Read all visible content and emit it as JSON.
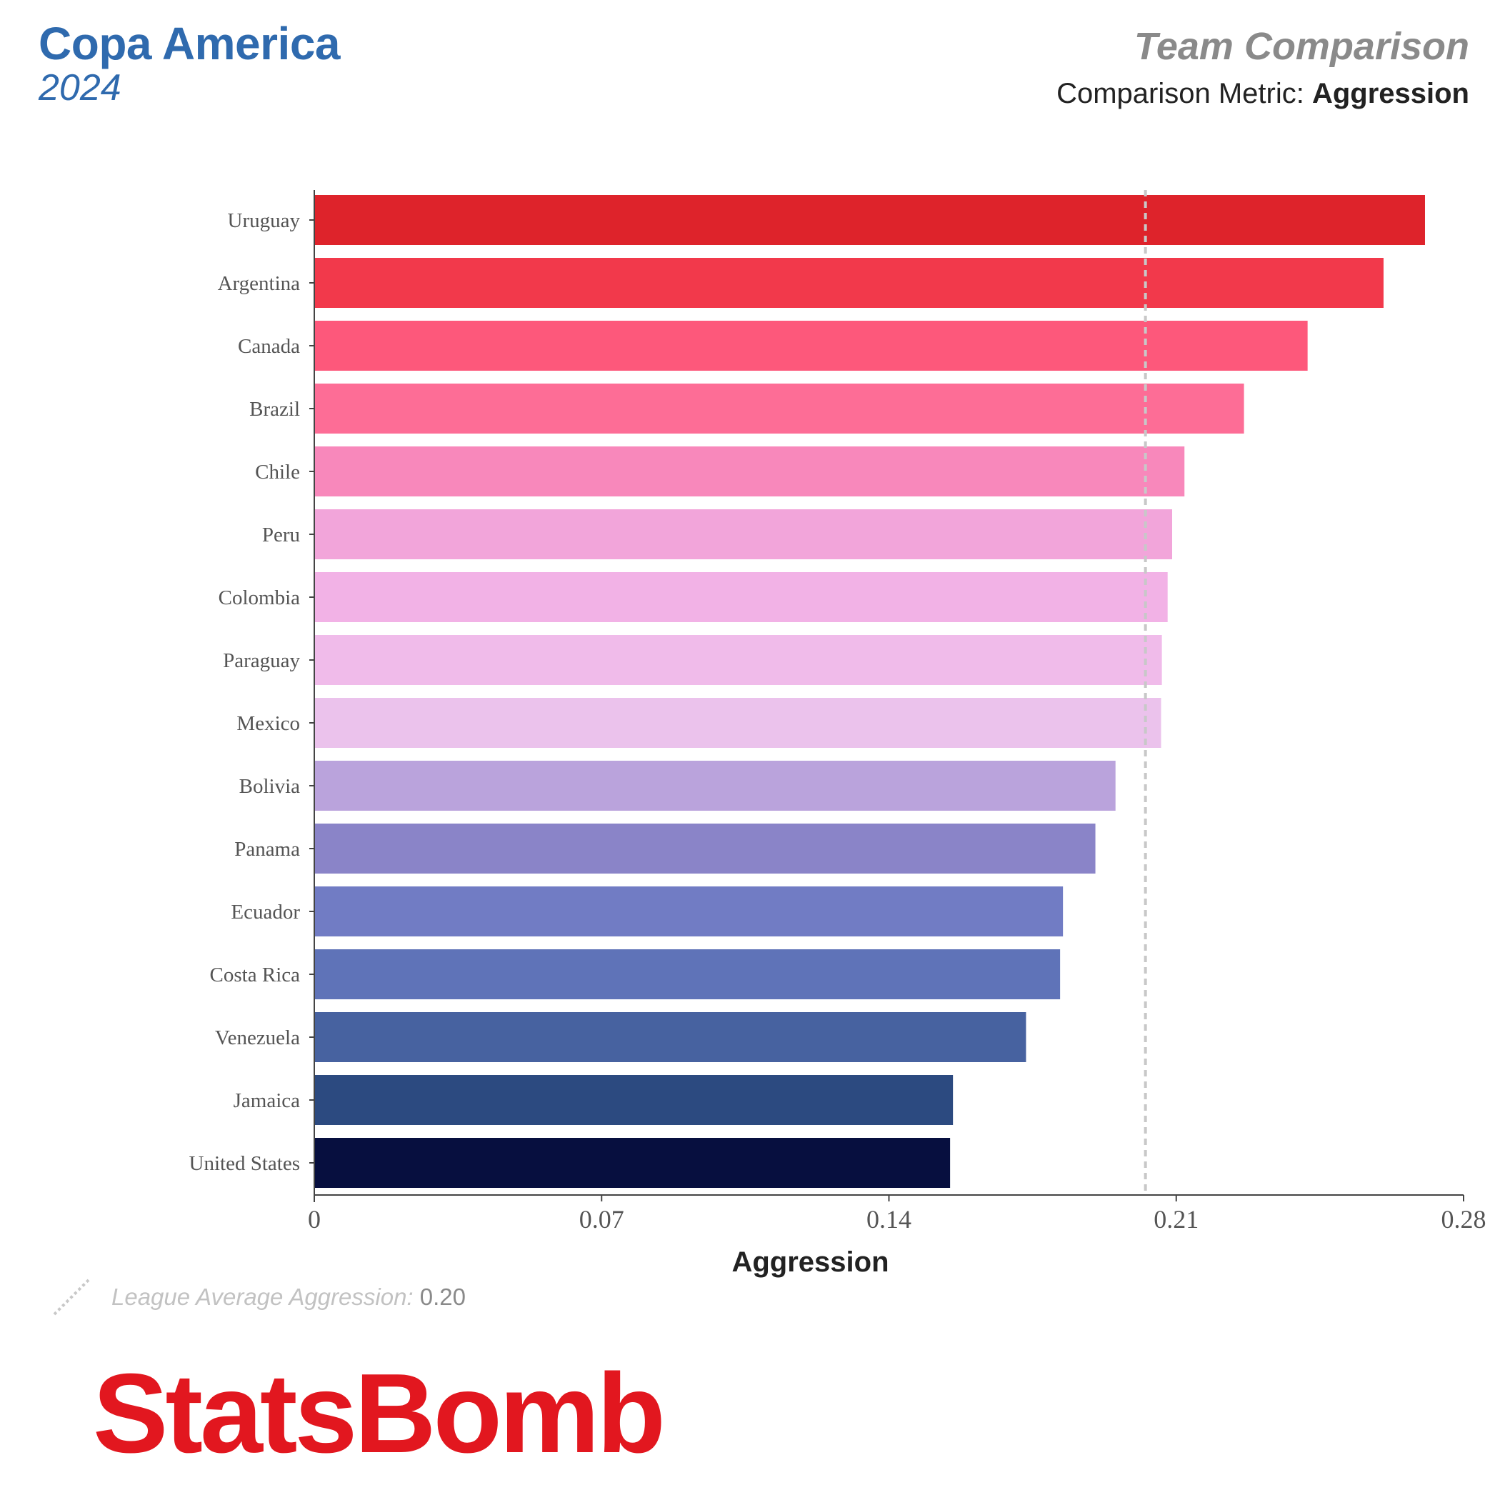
{
  "header": {
    "competition": "Copa America",
    "season": "2024",
    "chart_kind": "Team Comparison",
    "metric_prefix": "Comparison Metric:",
    "metric_name": "Aggression"
  },
  "legend": {
    "label": "League Average Aggression:",
    "value": "0.20"
  },
  "brand": {
    "logo_text": "StatsBomb"
  },
  "colors": {
    "title_blue": "#2f6aae",
    "brand_red": "#e2171f",
    "average_line": "#c8c8c8"
  },
  "chart_data": {
    "type": "bar",
    "orientation": "horizontal",
    "xlabel": "Aggression",
    "ylabel": "",
    "xlim": [
      0,
      0.28
    ],
    "xticks": [
      0,
      0.07,
      0.14,
      0.21,
      0.28
    ],
    "xtick_labels": [
      "0",
      "0.07",
      "0.14",
      "0.21",
      "0.28"
    ],
    "reference_line": {
      "value": 0.2025,
      "style": "dashed"
    },
    "grid": false,
    "categories": [
      "Uruguay",
      "Argentina",
      "Canada",
      "Brazil",
      "Chile",
      "Peru",
      "Colombia",
      "Paraguay",
      "Mexico",
      "Bolivia",
      "Panama",
      "Ecuador",
      "Costa Rica",
      "Venezuela",
      "Jamaica",
      "United States"
    ],
    "values": [
      0.2706,
      0.2605,
      0.242,
      0.2265,
      0.212,
      0.209,
      0.2079,
      0.2065,
      0.2063,
      0.1952,
      0.1903,
      0.1824,
      0.1817,
      0.1734,
      0.1556,
      0.1549
    ],
    "bar_colors": [
      "#de232b",
      "#f2394b",
      "#fd587b",
      "#fd6d96",
      "#f888bb",
      "#f2a5da",
      "#f2b2e6",
      "#f0bbea",
      "#ebc2ec",
      "#baa3dc",
      "#8a84c8",
      "#717cc4",
      "#5f73b8",
      "#4762a0",
      "#2c4a80",
      "#070f3f"
    ]
  }
}
